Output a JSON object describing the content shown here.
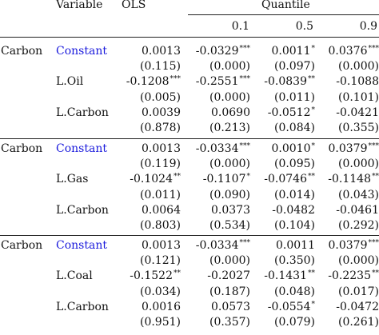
{
  "header": {
    "variable": "Variable",
    "ols": "OLS",
    "quantile": "Quantile",
    "quantiles": [
      "0.1",
      "0.5",
      "0.9"
    ]
  },
  "blocks": [
    {
      "dependent": "Carbon",
      "rows": [
        {
          "label": "Constant",
          "blue": true,
          "cells": [
            [
              "0.0013",
              ""
            ],
            [
              "-0.0329",
              "***"
            ],
            [
              "0.0011",
              "*"
            ],
            [
              "0.0376",
              "***"
            ]
          ]
        },
        {
          "label": "",
          "cells": [
            [
              "(0.115)",
              ""
            ],
            [
              "(0.000)",
              ""
            ],
            [
              "(0.097)",
              ""
            ],
            [
              "(0.000)",
              ""
            ]
          ]
        },
        {
          "label": "L.Oil",
          "cells": [
            [
              "-0.1208",
              "***"
            ],
            [
              "-0.2551",
              "***"
            ],
            [
              "-0.0839",
              "**"
            ],
            [
              "-0.1088",
              ""
            ]
          ]
        },
        {
          "label": "",
          "cells": [
            [
              "(0.005)",
              ""
            ],
            [
              "(0.000)",
              ""
            ],
            [
              "(0.011)",
              ""
            ],
            [
              "(0.101)",
              ""
            ]
          ]
        },
        {
          "label": "L.Carbon",
          "cells": [
            [
              "0.0039",
              ""
            ],
            [
              "0.0690",
              ""
            ],
            [
              "-0.0512",
              "*"
            ],
            [
              "-0.0421",
              ""
            ]
          ]
        },
        {
          "label": "",
          "cells": [
            [
              "(0.878)",
              ""
            ],
            [
              "(0.213)",
              ""
            ],
            [
              "(0.084)",
              ""
            ],
            [
              "(0.355)",
              ""
            ]
          ]
        }
      ]
    },
    {
      "dependent": "Carbon",
      "rows": [
        {
          "label": "Constant",
          "blue": true,
          "cells": [
            [
              "0.0013",
              ""
            ],
            [
              "-0.0334",
              "***"
            ],
            [
              "0.0010",
              "*"
            ],
            [
              "0.0379",
              "***"
            ]
          ]
        },
        {
          "label": "",
          "cells": [
            [
              "(0.119)",
              ""
            ],
            [
              "(0.000)",
              ""
            ],
            [
              "(0.095)",
              ""
            ],
            [
              "(0.000)",
              ""
            ]
          ]
        },
        {
          "label": "L.Gas",
          "cells": [
            [
              "-0.1024",
              "**"
            ],
            [
              "-0.1107",
              "*"
            ],
            [
              "-0.0746",
              "**"
            ],
            [
              "-0.1148",
              "**"
            ]
          ]
        },
        {
          "label": "",
          "cells": [
            [
              "(0.011)",
              ""
            ],
            [
              "(0.090)",
              ""
            ],
            [
              "(0.014)",
              ""
            ],
            [
              "(0.043)",
              ""
            ]
          ]
        },
        {
          "label": "L.Carbon",
          "cells": [
            [
              "0.0064",
              ""
            ],
            [
              "0.0373",
              ""
            ],
            [
              "-0.0482",
              ""
            ],
            [
              "-0.0461",
              ""
            ]
          ]
        },
        {
          "label": "",
          "cells": [
            [
              "(0.803)",
              ""
            ],
            [
              "(0.534)",
              ""
            ],
            [
              "(0.104)",
              ""
            ],
            [
              "(0.292)",
              ""
            ]
          ]
        }
      ]
    },
    {
      "dependent": "Carbon",
      "rows": [
        {
          "label": "Constant",
          "blue": true,
          "cells": [
            [
              "0.0013",
              ""
            ],
            [
              "-0.0334",
              "***"
            ],
            [
              "0.0011",
              ""
            ],
            [
              "0.0379",
              "***"
            ]
          ]
        },
        {
          "label": "",
          "cells": [
            [
              "(0.121)",
              ""
            ],
            [
              "(0.000)",
              ""
            ],
            [
              "(0.350)",
              ""
            ],
            [
              "(0.000)",
              ""
            ]
          ]
        },
        {
          "label": "L.Coal",
          "cells": [
            [
              "-0.1522",
              "**"
            ],
            [
              "-0.2027",
              ""
            ],
            [
              "-0.1431",
              "**"
            ],
            [
              "-0.2235",
              "**"
            ]
          ]
        },
        {
          "label": "",
          "cells": [
            [
              "(0.034)",
              ""
            ],
            [
              "(0.187)",
              ""
            ],
            [
              "(0.048)",
              ""
            ],
            [
              "(0.017)",
              ""
            ]
          ]
        },
        {
          "label": "L.Carbon",
          "cells": [
            [
              "0.0016",
              ""
            ],
            [
              "0.0573",
              ""
            ],
            [
              "-0.0554",
              "*"
            ],
            [
              "-0.0472",
              ""
            ]
          ]
        },
        {
          "label": "",
          "cells": [
            [
              "(0.951)",
              ""
            ],
            [
              "(0.357)",
              ""
            ],
            [
              "(0.079)",
              ""
            ],
            [
              "(0.261)",
              ""
            ]
          ]
        }
      ]
    }
  ],
  "colors": {
    "link_blue": "#1a1adc",
    "text": "#111111",
    "rule": "#222222"
  }
}
